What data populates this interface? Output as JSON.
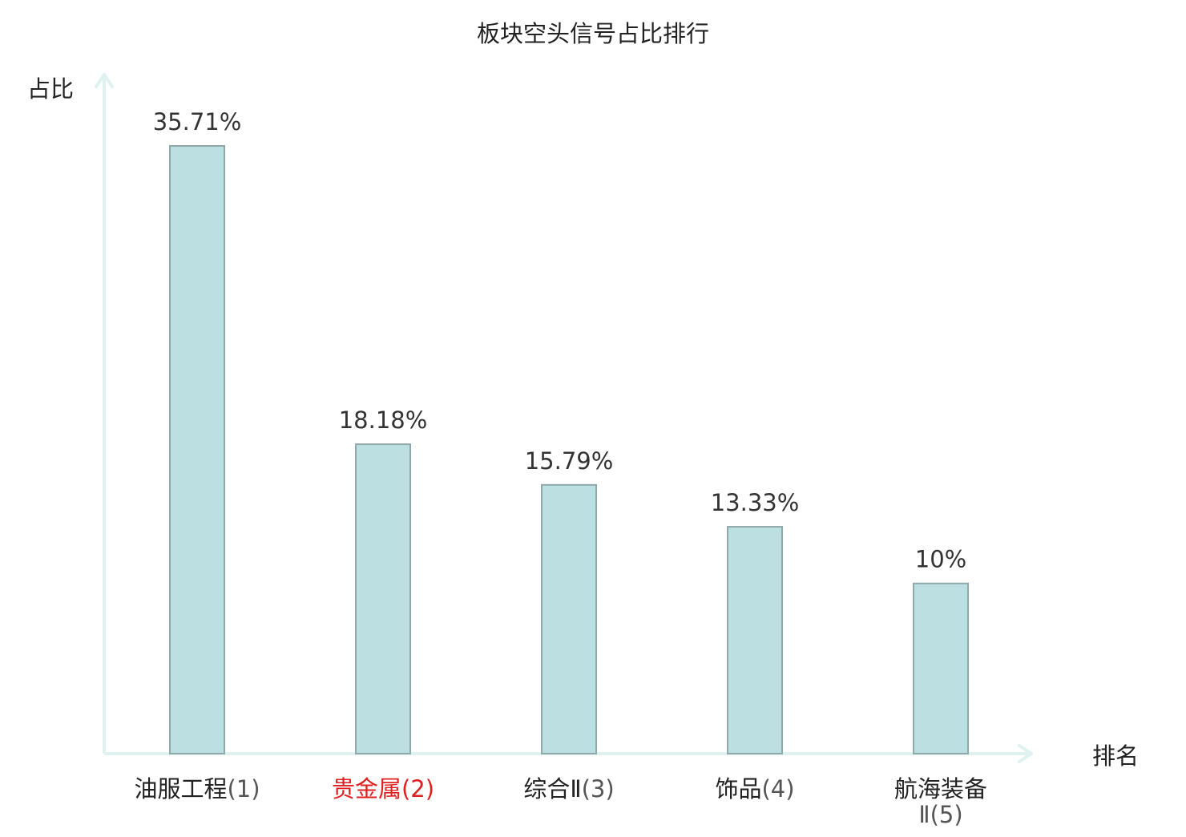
{
  "chart_data": {
    "type": "bar",
    "title": "板块空头信号占比排行",
    "xlabel": "排名",
    "ylabel": "占比",
    "ylim": [
      0,
      40
    ],
    "grid": false,
    "legend": "none",
    "categories": [
      {
        "name": "油服工程",
        "rank": "(1)",
        "highlight": false
      },
      {
        "name": "贵金属",
        "rank": "(2)",
        "highlight": true
      },
      {
        "name": "综合Ⅱ",
        "rank": "(3)",
        "highlight": false
      },
      {
        "name": "饰品",
        "rank": "(4)",
        "highlight": false
      },
      {
        "name": "航海装备Ⅱ",
        "rank": "(5)",
        "highlight": false
      }
    ],
    "values": [
      35.71,
      18.18,
      15.79,
      13.33,
      10
    ],
    "value_labels": [
      "35.71%",
      "18.18%",
      "15.79%",
      "13.33%",
      "10%"
    ],
    "colors": {
      "bar_fill": "#bce0e2",
      "bar_stroke": "#8fa9aa",
      "axis": "#dff2ef",
      "label_text": "#222222",
      "value_text": "#333333",
      "rank_text": "#555555",
      "highlight_text": "#e02020"
    }
  }
}
